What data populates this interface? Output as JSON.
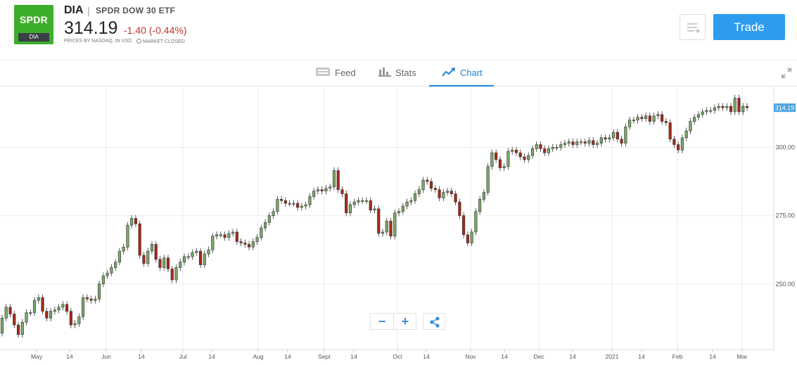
{
  "header": {
    "logo_text": "SPDR",
    "logo_ticker": "DIA",
    "symbol": "DIA",
    "separator": "|",
    "name": "SPDR DOW 30 ETF",
    "price": "314.19",
    "change": "-1.40 (-0.44%)",
    "source": "PRICES BY NASDAQ, IN USD",
    "market_status": "MARKET CLOSED",
    "trade_label": "Trade",
    "colors": {
      "logo": "#3dae2b",
      "trade": "#2d9cef",
      "negative": "#c0392b",
      "active_tab": "#1f85d8"
    }
  },
  "tabs": [
    {
      "label": "Feed",
      "icon": "feed-icon"
    },
    {
      "label": "Stats",
      "icon": "stats-icon"
    },
    {
      "label": "Chart",
      "icon": "chart-icon",
      "active": true
    }
  ],
  "chart_data": {
    "type": "candlestick",
    "last_price_label": "314.19",
    "y_ticks": [
      "300.00",
      "275.00",
      "250.00"
    ],
    "y_tick_values": [
      300,
      275,
      250
    ],
    "ylim": [
      226,
      322
    ],
    "x_ticks": [
      "May",
      "14",
      "Jun",
      "14",
      "Jul",
      "14",
      "Aug",
      "14",
      "Sept",
      "14",
      "Oct",
      "14",
      "Nov",
      "14",
      "Dec",
      "14",
      "2021",
      "14",
      "Feb",
      "14",
      "Mar"
    ],
    "colors": {
      "up": "#7aa868",
      "down": "#a6291a",
      "grid": "#ebebeb",
      "badge": "#4ea3e0"
    },
    "closes": [
      237.5,
      241.5,
      239.0,
      235.0,
      231.5,
      236.0,
      239.5,
      239.5,
      244.0,
      245.0,
      240.0,
      237.5,
      240.0,
      240.5,
      241.5,
      242.5,
      240.0,
      235.0,
      235.5,
      238.0,
      245.0,
      244.5,
      244.0,
      244.5,
      250.0,
      253.0,
      254.0,
      256.0,
      258.0,
      262.0,
      263.5,
      271.5,
      274.0,
      272.0,
      260.5,
      257.5,
      262.0,
      264.5,
      259.0,
      256.0,
      259.5,
      255.5,
      251.5,
      256.0,
      258.0,
      260.0,
      260.0,
      261.5,
      262.0,
      257.0,
      261.0,
      262.5,
      267.5,
      268.0,
      268.0,
      267.0,
      268.5,
      269.0,
      265.5,
      265.0,
      264.5,
      263.5,
      265.5,
      267.0,
      270.5,
      272.5,
      275.0,
      276.5,
      281.0,
      280.5,
      279.5,
      279.5,
      279.5,
      278.0,
      278.5,
      279.0,
      282.0,
      284.0,
      284.5,
      284.0,
      285.0,
      285.5,
      291.5,
      284.5,
      283.0,
      276.0,
      279.0,
      280.0,
      280.5,
      280.5,
      280.5,
      277.0,
      277.5,
      268.5,
      269.0,
      273.0,
      267.5,
      276.0,
      276.5,
      278.5,
      280.0,
      280.5,
      283.0,
      284.5,
      288.0,
      287.5,
      285.0,
      284.5,
      281.5,
      283.5,
      284.0,
      283.0,
      280.0,
      275.0,
      268.0,
      265.0,
      269.0,
      276.5,
      281.0,
      283.5,
      293.0,
      298.0,
      295.5,
      292.5,
      293.0,
      298.5,
      299.0,
      298.0,
      296.5,
      295.5,
      297.0,
      299.5,
      301.0,
      299.5,
      298.0,
      299.5,
      300.0,
      300.0,
      301.0,
      301.5,
      302.0,
      301.0,
      302.0,
      302.0,
      301.5,
      302.5,
      301.0,
      301.5,
      303.5,
      303.0,
      303.5,
      305.5,
      303.0,
      301.5,
      307.5,
      310.0,
      310.0,
      311.0,
      310.5,
      311.5,
      309.5,
      311.5,
      312.0,
      309.5,
      309.0,
      303.0,
      301.0,
      299.0,
      303.5,
      306.0,
      309.5,
      311.0,
      312.0,
      313.0,
      313.5,
      313.5,
      314.5,
      315.0,
      314.5,
      315.0,
      313.0,
      318.0,
      313.0,
      315.0,
      314.5
    ],
    "opens": [
      232.0,
      237.5,
      241.5,
      239.0,
      235.0,
      231.5,
      236.0,
      239.5,
      239.5,
      244.0,
      245.0,
      240.0,
      237.5,
      240.0,
      240.5,
      241.5,
      242.5,
      240.0,
      235.0,
      235.5,
      238.0,
      245.0,
      244.5,
      244.0,
      244.5,
      250.0,
      253.0,
      254.0,
      256.0,
      258.0,
      262.0,
      263.5,
      271.5,
      274.0,
      272.0,
      260.5,
      257.5,
      262.0,
      264.5,
      259.0,
      256.0,
      259.5,
      255.5,
      251.5,
      256.0,
      258.0,
      260.0,
      260.0,
      261.5,
      262.0,
      257.0,
      261.0,
      262.5,
      267.5,
      268.0,
      268.0,
      267.0,
      268.5,
      269.0,
      265.5,
      265.0,
      264.5,
      263.5,
      265.5,
      267.0,
      270.5,
      272.5,
      275.0,
      276.5,
      281.0,
      280.5,
      279.5,
      279.5,
      279.5,
      278.0,
      278.5,
      279.0,
      282.0,
      284.0,
      284.5,
      284.0,
      285.0,
      285.5,
      291.5,
      284.5,
      283.0,
      276.0,
      279.0,
      280.0,
      280.5,
      280.5,
      280.5,
      277.0,
      277.5,
      268.5,
      269.0,
      273.0,
      267.5,
      276.0,
      276.5,
      278.5,
      280.0,
      280.5,
      283.0,
      284.5,
      288.0,
      287.5,
      285.0,
      284.5,
      281.5,
      283.5,
      284.0,
      283.0,
      280.0,
      275.0,
      268.0,
      265.0,
      269.0,
      276.5,
      281.0,
      283.5,
      293.0,
      298.0,
      295.5,
      292.5,
      293.0,
      298.5,
      299.0,
      298.0,
      296.5,
      295.5,
      297.0,
      299.5,
      301.0,
      299.5,
      298.0,
      299.5,
      300.0,
      300.0,
      301.0,
      301.5,
      302.0,
      301.0,
      302.0,
      302.0,
      301.5,
      302.5,
      301.0,
      301.5,
      303.5,
      303.0,
      303.5,
      305.5,
      303.0,
      301.5,
      307.5,
      310.0,
      310.0,
      311.0,
      310.5,
      311.5,
      309.5,
      311.5,
      312.0,
      309.5,
      309.0,
      303.0,
      301.0,
      299.0,
      303.5,
      306.0,
      309.5,
      311.0,
      312.0,
      313.0,
      313.5,
      313.5,
      314.5,
      315.0,
      314.5,
      315.0,
      313.0,
      318.0,
      313.0,
      315.0
    ]
  },
  "controls": {
    "zoom_out": "−",
    "zoom_in": "+"
  }
}
